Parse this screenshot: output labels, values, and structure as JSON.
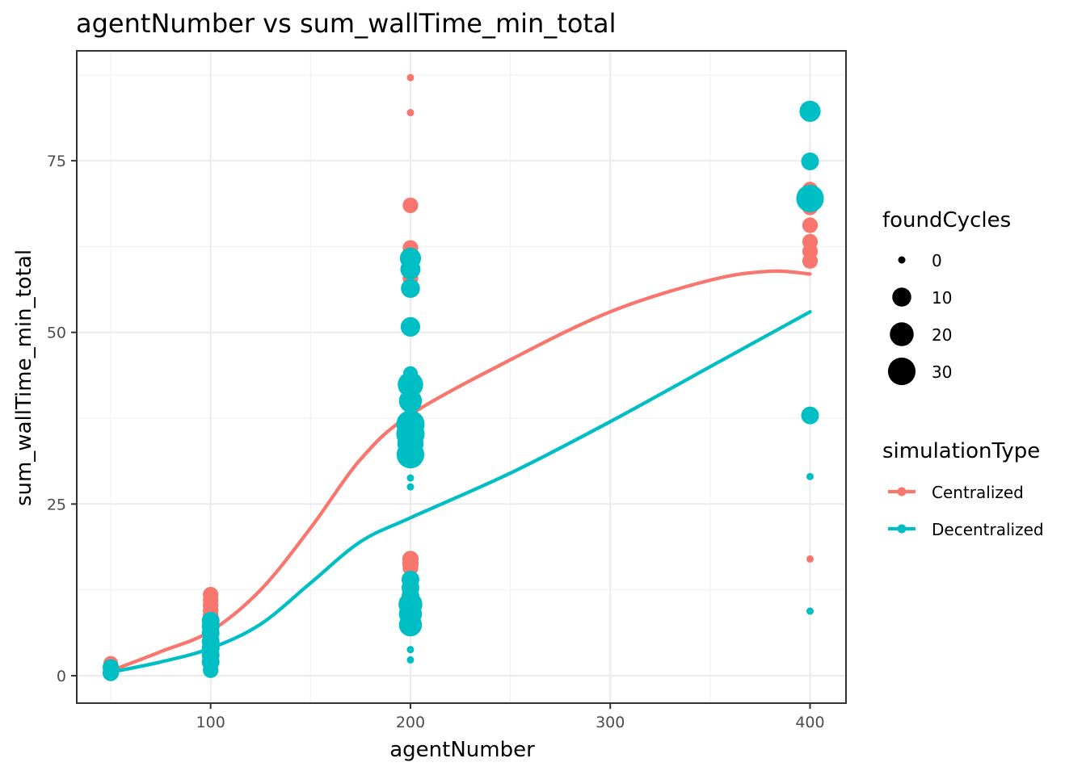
{
  "chart_data": {
    "type": "scatter",
    "title": "agentNumber  vs  sum_wallTime_min_total",
    "xlabel": "agentNumber",
    "ylabel": "sum_wallTime_min_total",
    "xlim": [
      33,
      418
    ],
    "ylim": [
      -4,
      91
    ],
    "x_ticks": [
      100,
      200,
      300,
      400
    ],
    "x_tick_labels": [
      "100",
      "200",
      "300",
      "400"
    ],
    "x_minor_ticks": [
      50,
      150,
      250,
      350
    ],
    "y_ticks": [
      0,
      25,
      50,
      75
    ],
    "y_tick_labels": [
      "0",
      "25",
      "50",
      "75"
    ],
    "y_minor_ticks": [
      12.5,
      37.5,
      62.5,
      87.5
    ],
    "grid": true,
    "legend_position": "right",
    "size_legend": {
      "title": "foundCycles",
      "values": [
        0,
        10,
        20,
        30
      ],
      "labels": [
        "0",
        "10",
        "20",
        "30"
      ]
    },
    "series": [
      {
        "name": "Centralized",
        "color": "#F8766D",
        "points": [
          {
            "x": 50,
            "y": 1.8,
            "size": 4
          },
          {
            "x": 50,
            "y": 1.2,
            "size": 3
          },
          {
            "x": 50,
            "y": 0.6,
            "size": 2
          },
          {
            "x": 100,
            "y": 11.8,
            "size": 5
          },
          {
            "x": 100,
            "y": 11.0,
            "size": 5
          },
          {
            "x": 100,
            "y": 10.2,
            "size": 5
          },
          {
            "x": 100,
            "y": 9.5,
            "size": 5
          },
          {
            "x": 100,
            "y": 8.8,
            "size": 5
          },
          {
            "x": 100,
            "y": 7.6,
            "size": 5
          },
          {
            "x": 100,
            "y": 6.9,
            "size": 5
          },
          {
            "x": 100,
            "y": 6.2,
            "size": 5
          },
          {
            "x": 100,
            "y": 5.3,
            "size": 4
          },
          {
            "x": 200,
            "y": 87.1,
            "size": 0
          },
          {
            "x": 200,
            "y": 82.0,
            "size": 0
          },
          {
            "x": 200,
            "y": 68.5,
            "size": 5
          },
          {
            "x": 200,
            "y": 62.3,
            "size": 5
          },
          {
            "x": 200,
            "y": 61.1,
            "size": 5
          },
          {
            "x": 200,
            "y": 60.2,
            "size": 5
          },
          {
            "x": 200,
            "y": 59.2,
            "size": 5
          },
          {
            "x": 200,
            "y": 57.9,
            "size": 5
          },
          {
            "x": 200,
            "y": 17.0,
            "size": 6
          },
          {
            "x": 200,
            "y": 16.3,
            "size": 6
          },
          {
            "x": 200,
            "y": 15.7,
            "size": 5
          },
          {
            "x": 200,
            "y": 10.0,
            "size": 5
          },
          {
            "x": 400,
            "y": 81.2,
            "size": 0
          },
          {
            "x": 400,
            "y": 70.8,
            "size": 5
          },
          {
            "x": 400,
            "y": 68.2,
            "size": 5
          },
          {
            "x": 400,
            "y": 65.6,
            "size": 5
          },
          {
            "x": 400,
            "y": 63.2,
            "size": 5
          },
          {
            "x": 400,
            "y": 61.8,
            "size": 5
          },
          {
            "x": 400,
            "y": 60.4,
            "size": 5
          },
          {
            "x": 400,
            "y": 17.0,
            "size": 0
          }
        ],
        "smooth": [
          [
            50,
            0.7
          ],
          [
            75,
            3.5
          ],
          [
            100,
            6.5
          ],
          [
            125,
            12.5
          ],
          [
            150,
            21.5
          ],
          [
            175,
            31.5
          ],
          [
            200,
            38.0
          ],
          [
            250,
            46.0
          ],
          [
            300,
            53.0
          ],
          [
            350,
            57.6
          ],
          [
            380,
            58.9
          ],
          [
            400,
            58.5
          ]
        ]
      },
      {
        "name": "Decentralized",
        "color": "#00BFC4",
        "points": [
          {
            "x": 50,
            "y": 1.2,
            "size": 6
          },
          {
            "x": 50,
            "y": 0.4,
            "size": 6
          },
          {
            "x": 100,
            "y": 8.0,
            "size": 8
          },
          {
            "x": 100,
            "y": 7.2,
            "size": 8
          },
          {
            "x": 100,
            "y": 6.2,
            "size": 8
          },
          {
            "x": 100,
            "y": 5.0,
            "size": 8
          },
          {
            "x": 100,
            "y": 4.0,
            "size": 8
          },
          {
            "x": 100,
            "y": 3.0,
            "size": 8
          },
          {
            "x": 100,
            "y": 2.0,
            "size": 8
          },
          {
            "x": 100,
            "y": 0.8,
            "size": 5
          },
          {
            "x": 200,
            "y": 60.8,
            "size": 14
          },
          {
            "x": 200,
            "y": 59.2,
            "size": 12
          },
          {
            "x": 200,
            "y": 56.4,
            "size": 10
          },
          {
            "x": 200,
            "y": 50.8,
            "size": 11
          },
          {
            "x": 200,
            "y": 44.0,
            "size": 4
          },
          {
            "x": 200,
            "y": 42.4,
            "size": 24
          },
          {
            "x": 200,
            "y": 40.0,
            "size": 18
          },
          {
            "x": 200,
            "y": 36.6,
            "size": 32
          },
          {
            "x": 200,
            "y": 35.2,
            "size": 32
          },
          {
            "x": 200,
            "y": 33.8,
            "size": 26
          },
          {
            "x": 200,
            "y": 32.2,
            "size": 30
          },
          {
            "x": 200,
            "y": 28.8,
            "size": 0
          },
          {
            "x": 200,
            "y": 27.5,
            "size": 0
          },
          {
            "x": 200,
            "y": 14.0,
            "size": 8
          },
          {
            "x": 200,
            "y": 12.8,
            "size": 8
          },
          {
            "x": 200,
            "y": 11.6,
            "size": 8
          },
          {
            "x": 200,
            "y": 10.4,
            "size": 20
          },
          {
            "x": 200,
            "y": 9.0,
            "size": 18
          },
          {
            "x": 200,
            "y": 7.4,
            "size": 18
          },
          {
            "x": 200,
            "y": 3.8,
            "size": 0
          },
          {
            "x": 200,
            "y": 2.3,
            "size": 0
          },
          {
            "x": 400,
            "y": 82.2,
            "size": 14
          },
          {
            "x": 400,
            "y": 74.9,
            "size": 8
          },
          {
            "x": 400,
            "y": 69.5,
            "size": 30
          },
          {
            "x": 400,
            "y": 37.9,
            "size": 8
          },
          {
            "x": 400,
            "y": 29.0,
            "size": 0
          },
          {
            "x": 400,
            "y": 9.4,
            "size": 0
          }
        ],
        "smooth": [
          [
            50,
            0.5
          ],
          [
            75,
            2.0
          ],
          [
            100,
            4.0
          ],
          [
            125,
            7.5
          ],
          [
            150,
            13.5
          ],
          [
            175,
            19.5
          ],
          [
            200,
            23.0
          ],
          [
            250,
            29.5
          ],
          [
            300,
            37.0
          ],
          [
            350,
            45.0
          ],
          [
            400,
            53.0
          ]
        ]
      }
    ],
    "color_legend": {
      "title": "simulationType",
      "labels": [
        "Centralized",
        "Decentralized"
      ]
    }
  }
}
